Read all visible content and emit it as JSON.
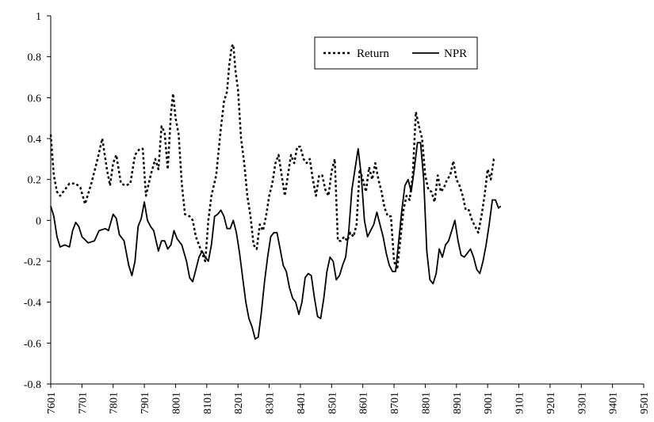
{
  "chart_data": {
    "type": "line",
    "title": "",
    "xlabel": "",
    "ylabel": "",
    "ylim": [
      -0.8,
      1
    ],
    "yticks": [
      1,
      0.8,
      0.6,
      0.4,
      0.2,
      0,
      -0.2,
      -0.4,
      -0.6,
      -0.8
    ],
    "xticks": [
      "7601",
      "7701",
      "7801",
      "7901",
      "8001",
      "8101",
      "8201",
      "8301",
      "8401",
      "8501",
      "8601",
      "8701",
      "8801",
      "8901",
      "9001",
      "9101",
      "9201",
      "9301",
      "9401",
      "9501"
    ],
    "grid": false,
    "legend_position": "top-right",
    "series": [
      {
        "name": "Return",
        "style": "dotted",
        "points": [
          [
            0,
            0.42
          ],
          [
            0.1,
            0.22
          ],
          [
            0.2,
            0.14
          ],
          [
            0.3,
            0.12
          ],
          [
            0.45,
            0.15
          ],
          [
            0.6,
            0.18
          ],
          [
            0.8,
            0.18
          ],
          [
            0.95,
            0.16
          ],
          [
            1.1,
            0.08
          ],
          [
            1.3,
            0.18
          ],
          [
            1.5,
            0.3
          ],
          [
            1.65,
            0.4
          ],
          [
            1.8,
            0.25
          ],
          [
            1.9,
            0.17
          ],
          [
            2.0,
            0.28
          ],
          [
            2.1,
            0.32
          ],
          [
            2.25,
            0.18
          ],
          [
            2.4,
            0.17
          ],
          [
            2.55,
            0.18
          ],
          [
            2.7,
            0.32
          ],
          [
            2.85,
            0.35
          ],
          [
            2.95,
            0.35
          ],
          [
            3.05,
            0.12
          ],
          [
            3.2,
            0.22
          ],
          [
            3.35,
            0.3
          ],
          [
            3.45,
            0.25
          ],
          [
            3.55,
            0.46
          ],
          [
            3.65,
            0.43
          ],
          [
            3.75,
            0.25
          ],
          [
            3.85,
            0.52
          ],
          [
            3.92,
            0.62
          ],
          [
            4.0,
            0.5
          ],
          [
            4.1,
            0.42
          ],
          [
            4.2,
            0.18
          ],
          [
            4.3,
            0.03
          ],
          [
            4.45,
            0.02
          ],
          [
            4.55,
            0.0
          ],
          [
            4.65,
            -0.08
          ],
          [
            4.75,
            -0.12
          ],
          [
            4.85,
            -0.16
          ],
          [
            4.95,
            -0.2
          ],
          [
            5.05,
            0.0
          ],
          [
            5.15,
            0.12
          ],
          [
            5.3,
            0.22
          ],
          [
            5.45,
            0.45
          ],
          [
            5.55,
            0.58
          ],
          [
            5.65,
            0.63
          ],
          [
            5.72,
            0.76
          ],
          [
            5.8,
            0.85
          ],
          [
            5.85,
            0.86
          ],
          [
            5.92,
            0.73
          ],
          [
            6.0,
            0.64
          ],
          [
            6.1,
            0.4
          ],
          [
            6.2,
            0.28
          ],
          [
            6.3,
            0.12
          ],
          [
            6.4,
            0.02
          ],
          [
            6.5,
            -0.12
          ],
          [
            6.6,
            -0.14
          ],
          [
            6.7,
            -0.02
          ],
          [
            6.8,
            -0.05
          ],
          [
            6.9,
            0.02
          ],
          [
            7.0,
            0.12
          ],
          [
            7.1,
            0.18
          ],
          [
            7.2,
            0.28
          ],
          [
            7.3,
            0.32
          ],
          [
            7.4,
            0.22
          ],
          [
            7.5,
            0.12
          ],
          [
            7.6,
            0.22
          ],
          [
            7.7,
            0.32
          ],
          [
            7.8,
            0.28
          ],
          [
            7.9,
            0.36
          ],
          [
            8.0,
            0.36
          ],
          [
            8.1,
            0.3
          ],
          [
            8.2,
            0.28
          ],
          [
            8.3,
            0.3
          ],
          [
            8.4,
            0.2
          ],
          [
            8.5,
            0.12
          ],
          [
            8.6,
            0.22
          ],
          [
            8.7,
            0.22
          ],
          [
            8.8,
            0.15
          ],
          [
            8.9,
            0.12
          ],
          [
            9.0,
            0.24
          ],
          [
            9.1,
            0.3
          ],
          [
            9.2,
            -0.1
          ],
          [
            9.3,
            -0.1
          ],
          [
            9.4,
            -0.08
          ],
          [
            9.5,
            -0.1
          ],
          [
            9.6,
            -0.06
          ],
          [
            9.7,
            -0.08
          ],
          [
            9.8,
            -0.02
          ],
          [
            9.9,
            0.25
          ],
          [
            10.0,
            0.2
          ],
          [
            10.1,
            0.14
          ],
          [
            10.2,
            0.26
          ],
          [
            10.3,
            0.2
          ],
          [
            10.4,
            0.28
          ],
          [
            10.5,
            0.2
          ],
          [
            10.6,
            0.14
          ],
          [
            10.7,
            0.06
          ],
          [
            10.8,
            0.02
          ],
          [
            10.9,
            0.02
          ],
          [
            11.0,
            -0.2
          ],
          [
            11.1,
            -0.24
          ],
          [
            11.2,
            -0.1
          ],
          [
            11.3,
            0.05
          ],
          [
            11.4,
            0.12
          ],
          [
            11.5,
            0.1
          ],
          [
            11.6,
            0.22
          ],
          [
            11.7,
            0.53
          ],
          [
            11.8,
            0.46
          ],
          [
            11.9,
            0.4
          ],
          [
            12.0,
            0.22
          ],
          [
            12.1,
            0.15
          ],
          [
            12.2,
            0.14
          ],
          [
            12.3,
            0.09
          ],
          [
            12.4,
            0.22
          ],
          [
            12.5,
            0.14
          ],
          [
            12.6,
            0.16
          ],
          [
            12.7,
            0.2
          ],
          [
            12.8,
            0.22
          ],
          [
            12.9,
            0.29
          ],
          [
            13.0,
            0.2
          ],
          [
            13.1,
            0.17
          ],
          [
            13.2,
            0.12
          ],
          [
            13.3,
            0.05
          ],
          [
            13.4,
            0.05
          ],
          [
            13.5,
            0.0
          ],
          [
            13.6,
            -0.03
          ],
          [
            13.7,
            -0.06
          ],
          [
            13.8,
            0.02
          ],
          [
            13.9,
            0.12
          ],
          [
            14.0,
            0.25
          ],
          [
            14.1,
            0.2
          ],
          [
            14.2,
            0.3
          ],
          [
            14.25,
            0.31
          ]
        ]
      },
      {
        "name": "NPR",
        "style": "solid",
        "points": [
          [
            0,
            0.07
          ],
          [
            0.1,
            0.02
          ],
          [
            0.2,
            -0.08
          ],
          [
            0.3,
            -0.13
          ],
          [
            0.45,
            -0.12
          ],
          [
            0.6,
            -0.13
          ],
          [
            0.7,
            -0.05
          ],
          [
            0.8,
            -0.01
          ],
          [
            0.9,
            -0.03
          ],
          [
            1.0,
            -0.08
          ],
          [
            1.2,
            -0.11
          ],
          [
            1.4,
            -0.1
          ],
          [
            1.55,
            -0.05
          ],
          [
            1.75,
            -0.04
          ],
          [
            1.85,
            -0.05
          ],
          [
            2.0,
            0.03
          ],
          [
            2.1,
            0.01
          ],
          [
            2.2,
            -0.07
          ],
          [
            2.35,
            -0.1
          ],
          [
            2.5,
            -0.22
          ],
          [
            2.6,
            -0.27
          ],
          [
            2.7,
            -0.2
          ],
          [
            2.8,
            -0.03
          ],
          [
            2.9,
            0.01
          ],
          [
            3.0,
            0.09
          ],
          [
            3.1,
            0.0
          ],
          [
            3.2,
            -0.03
          ],
          [
            3.3,
            -0.05
          ],
          [
            3.45,
            -0.15
          ],
          [
            3.55,
            -0.1
          ],
          [
            3.65,
            -0.1
          ],
          [
            3.75,
            -0.14
          ],
          [
            3.85,
            -0.12
          ],
          [
            3.95,
            -0.05
          ],
          [
            4.05,
            -0.09
          ],
          [
            4.2,
            -0.12
          ],
          [
            4.35,
            -0.2
          ],
          [
            4.45,
            -0.28
          ],
          [
            4.55,
            -0.3
          ],
          [
            4.65,
            -0.24
          ],
          [
            4.75,
            -0.18
          ],
          [
            4.85,
            -0.15
          ],
          [
            4.95,
            -0.18
          ],
          [
            5.05,
            -0.2
          ],
          [
            5.15,
            -0.12
          ],
          [
            5.25,
            0.02
          ],
          [
            5.35,
            0.03
          ],
          [
            5.45,
            0.05
          ],
          [
            5.55,
            0.02
          ],
          [
            5.65,
            -0.04
          ],
          [
            5.75,
            -0.04
          ],
          [
            5.85,
            0.0
          ],
          [
            5.95,
            -0.06
          ],
          [
            6.05,
            -0.16
          ],
          [
            6.15,
            -0.28
          ],
          [
            6.25,
            -0.4
          ],
          [
            6.35,
            -0.48
          ],
          [
            6.45,
            -0.52
          ],
          [
            6.55,
            -0.58
          ],
          [
            6.65,
            -0.57
          ],
          [
            6.75,
            -0.45
          ],
          [
            6.85,
            -0.3
          ],
          [
            6.95,
            -0.18
          ],
          [
            7.05,
            -0.08
          ],
          [
            7.15,
            -0.06
          ],
          [
            7.25,
            -0.06
          ],
          [
            7.35,
            -0.14
          ],
          [
            7.45,
            -0.22
          ],
          [
            7.55,
            -0.25
          ],
          [
            7.65,
            -0.33
          ],
          [
            7.75,
            -0.38
          ],
          [
            7.85,
            -0.4
          ],
          [
            7.95,
            -0.46
          ],
          [
            8.05,
            -0.4
          ],
          [
            8.15,
            -0.28
          ],
          [
            8.25,
            -0.26
          ],
          [
            8.35,
            -0.27
          ],
          [
            8.45,
            -0.38
          ],
          [
            8.55,
            -0.47
          ],
          [
            8.65,
            -0.48
          ],
          [
            8.75,
            -0.38
          ],
          [
            8.85,
            -0.25
          ],
          [
            8.95,
            -0.18
          ],
          [
            9.05,
            -0.2
          ],
          [
            9.15,
            -0.29
          ],
          [
            9.25,
            -0.27
          ],
          [
            9.35,
            -0.22
          ],
          [
            9.45,
            -0.18
          ],
          [
            9.55,
            -0.05
          ],
          [
            9.65,
            0.15
          ],
          [
            9.75,
            0.25
          ],
          [
            9.85,
            0.35
          ],
          [
            9.95,
            0.22
          ],
          [
            10.05,
            0.0
          ],
          [
            10.15,
            -0.08
          ],
          [
            10.25,
            -0.05
          ],
          [
            10.35,
            -0.02
          ],
          [
            10.45,
            0.04
          ],
          [
            10.55,
            -0.02
          ],
          [
            10.65,
            -0.08
          ],
          [
            10.75,
            -0.16
          ],
          [
            10.85,
            -0.22
          ],
          [
            10.95,
            -0.25
          ],
          [
            11.05,
            -0.25
          ],
          [
            11.15,
            -0.1
          ],
          [
            11.25,
            0.05
          ],
          [
            11.35,
            0.17
          ],
          [
            11.45,
            0.2
          ],
          [
            11.55,
            0.14
          ],
          [
            11.65,
            0.25
          ],
          [
            11.75,
            0.38
          ],
          [
            11.85,
            0.38
          ],
          [
            11.95,
            0.2
          ],
          [
            12.05,
            -0.15
          ],
          [
            12.15,
            -0.29
          ],
          [
            12.25,
            -0.31
          ],
          [
            12.35,
            -0.26
          ],
          [
            12.45,
            -0.14
          ],
          [
            12.55,
            -0.18
          ],
          [
            12.65,
            -0.12
          ],
          [
            12.75,
            -0.1
          ],
          [
            12.85,
            -0.05
          ],
          [
            12.95,
            0.0
          ],
          [
            13.05,
            -0.1
          ],
          [
            13.15,
            -0.17
          ],
          [
            13.25,
            -0.18
          ],
          [
            13.35,
            -0.16
          ],
          [
            13.45,
            -0.14
          ],
          [
            13.55,
            -0.18
          ],
          [
            13.65,
            -0.24
          ],
          [
            13.75,
            -0.26
          ],
          [
            13.85,
            -0.2
          ],
          [
            13.95,
            -0.12
          ],
          [
            14.05,
            -0.02
          ],
          [
            14.15,
            0.1
          ],
          [
            14.25,
            0.1
          ],
          [
            14.35,
            0.06
          ],
          [
            14.42,
            0.07
          ]
        ]
      }
    ]
  }
}
